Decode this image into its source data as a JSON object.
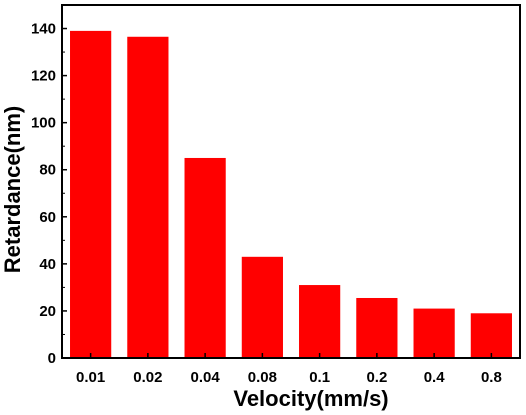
{
  "chart_data": {
    "type": "bar",
    "categories": [
      "0.01",
      "0.02",
      "0.04",
      "0.08",
      "0.1",
      "0.2",
      "0.4",
      "0.8"
    ],
    "values": [
      139,
      136.5,
      85,
      43,
      31,
      25.5,
      21,
      19
    ],
    "xlabel": "Velocity(mm/s)",
    "ylabel": "Retardance(nm)",
    "ylim": [
      0,
      150
    ],
    "yticks": [
      "0",
      "20",
      "40",
      "60",
      "80",
      "100",
      "120",
      "140"
    ],
    "bar_color": "#ff0000",
    "grid": false,
    "legend": "none"
  }
}
